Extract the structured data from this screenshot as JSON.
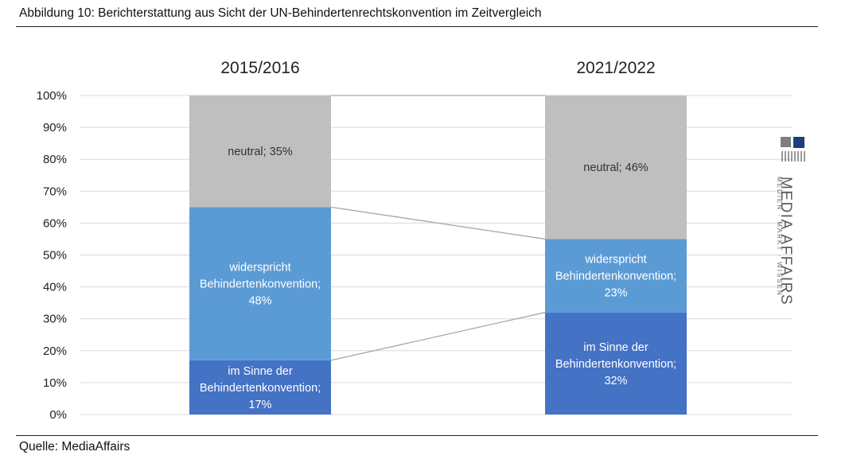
{
  "figure": {
    "title": "Abbildung 10: Berichterstattung aus Sicht der UN-Behindertenrechtskonvention im Zeitvergleich",
    "source": "Quelle: MediaAffairs"
  },
  "logo": {
    "wordmark": "MEDIA AFFAIRS",
    "tagline": "MEDIEN · MARKT · WISSEN"
  },
  "chart_data": {
    "type": "bar",
    "stacked": true,
    "percent": true,
    "categories": [
      "2015/2016",
      "2021/2022"
    ],
    "ylim": [
      0,
      100
    ],
    "y_ticks": [
      "0%",
      "10%",
      "20%",
      "30%",
      "40%",
      "50%",
      "60%",
      "70%",
      "80%",
      "90%",
      "100%"
    ],
    "grid": true,
    "legend": "none",
    "series": [
      {
        "name": "im Sinne der Behindertenkonvention",
        "values": [
          17,
          32
        ],
        "color": "#4472c4",
        "labels": [
          [
            "im Sinne der",
            "Behindertenkonvention;",
            "17%"
          ],
          [
            "im Sinne der",
            "Behindertenkonvention;",
            "32%"
          ]
        ]
      },
      {
        "name": "widerspricht Behindertenkonvention",
        "values": [
          48,
          23
        ],
        "color": "#5b9bd5",
        "labels": [
          [
            "widerspricht",
            "Behindertenkonvention;",
            "48%"
          ],
          [
            "widerspricht",
            "Behindertenkonvention;",
            "23%"
          ]
        ]
      },
      {
        "name": "neutral",
        "values": [
          35,
          46
        ],
        "color": "#bfbfbf",
        "labels": [
          [
            "neutral; 35%"
          ],
          [
            "neutral; 46%"
          ]
        ]
      }
    ],
    "series_lines": true,
    "colors": {
      "grid": "#d9d9d9",
      "series_lines": "#a6a6a6",
      "axis_text": "#222222"
    }
  }
}
